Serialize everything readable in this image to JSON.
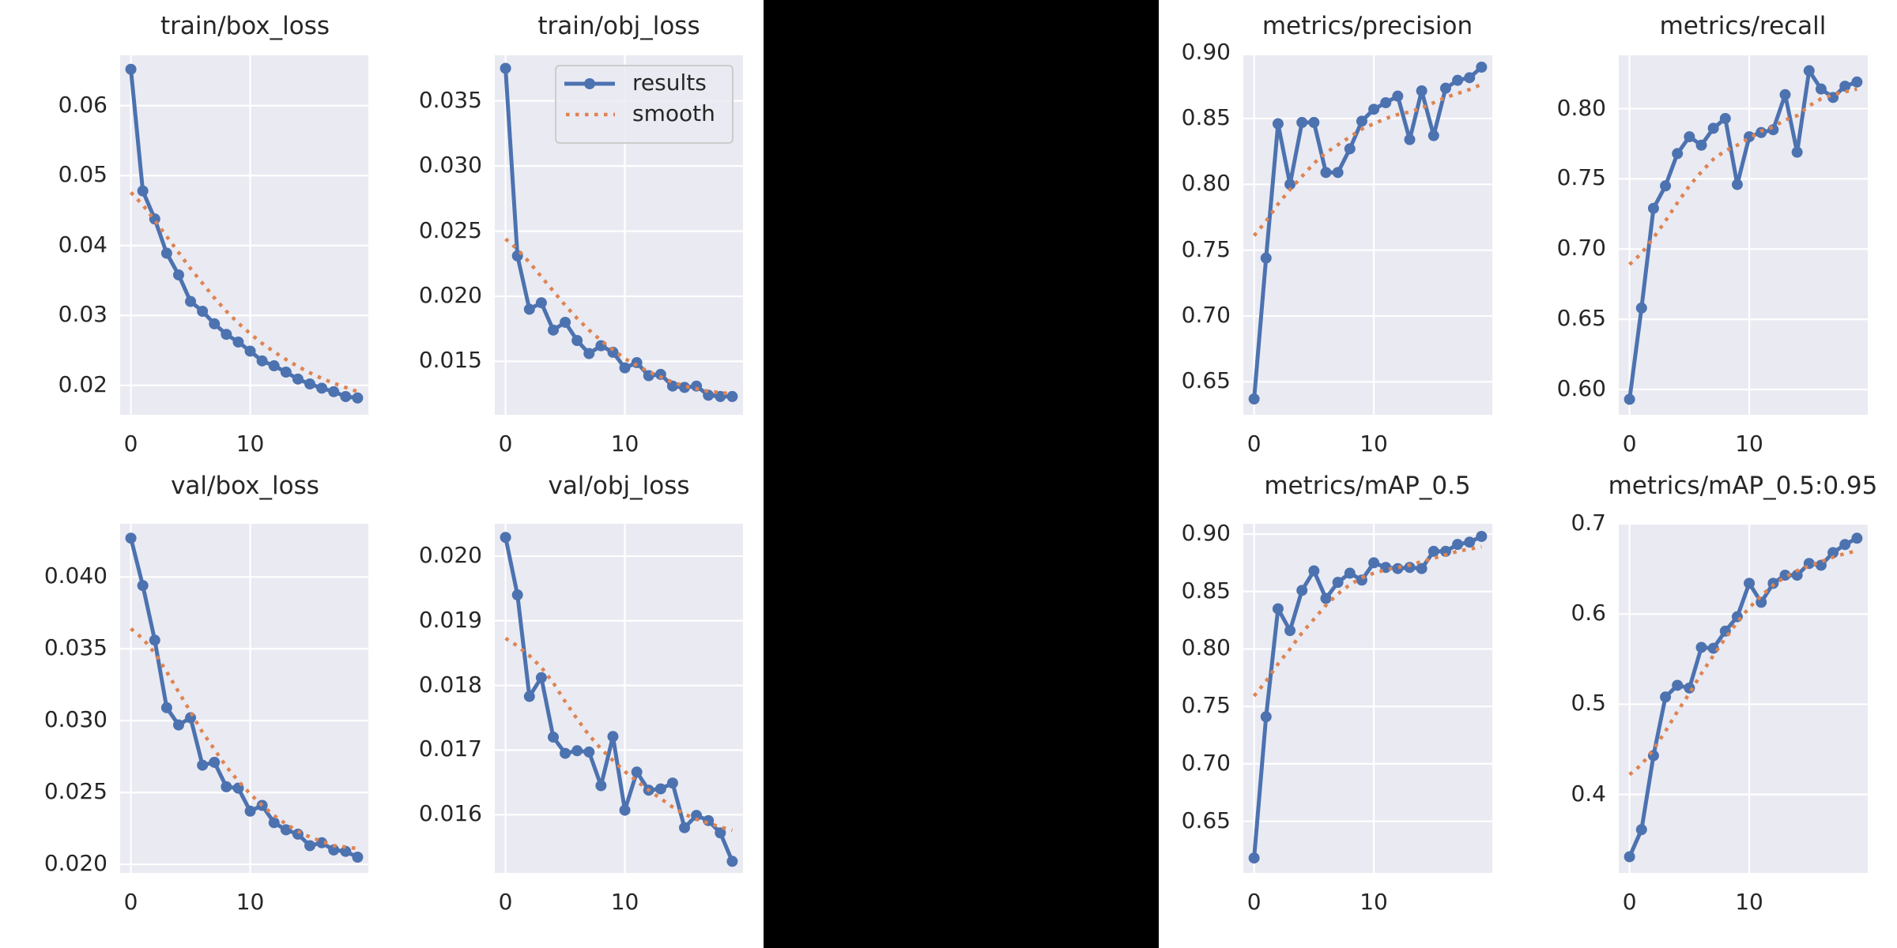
{
  "figure": {
    "legend": {
      "results_label": "results",
      "smooth_label": "smooth"
    },
    "colors": {
      "results": "#4c72b0",
      "smooth": "#dd8452",
      "axes_bg": "#eaeaf2",
      "grid": "#ffffff",
      "redaction": "#000000"
    },
    "redacted_region": "black rectangle covering middle columns"
  },
  "chart_data": [
    {
      "id": "train_box_loss",
      "type": "line",
      "title": "train/box_loss",
      "x": [
        0,
        1,
        2,
        3,
        4,
        5,
        6,
        7,
        8,
        9,
        10,
        11,
        12,
        13,
        14,
        15,
        16,
        17,
        18,
        19
      ],
      "series": [
        {
          "name": "results",
          "values": [
            0.0652,
            0.0478,
            0.0438,
            0.0389,
            0.0358,
            0.032,
            0.0306,
            0.0288,
            0.0273,
            0.0262,
            0.0249,
            0.0235,
            0.0228,
            0.0219,
            0.0209,
            0.0202,
            0.0196,
            0.0191,
            0.0184,
            0.0182
          ]
        },
        {
          "name": "smooth",
          "values": [
            0.0476,
            0.0458,
            0.0436,
            0.0413,
            0.039,
            0.0367,
            0.0346,
            0.0325,
            0.0306,
            0.0289,
            0.0274,
            0.026,
            0.0248,
            0.0237,
            0.0227,
            0.0218,
            0.021,
            0.0203,
            0.0197,
            0.0191
          ]
        }
      ],
      "yticks": [
        "0.02",
        "0.03",
        "0.04",
        "0.05",
        "0.06"
      ],
      "ytick_values": [
        0.02,
        0.03,
        0.04,
        0.05,
        0.06
      ],
      "xticks": [
        "0",
        "10"
      ],
      "ylim": [
        0.0158,
        0.0672
      ],
      "xlim": [
        -0.9,
        19.9
      ],
      "legend": false
    },
    {
      "id": "train_obj_loss",
      "type": "line",
      "title": "train/obj_loss",
      "x": [
        0,
        1,
        2,
        3,
        4,
        5,
        6,
        7,
        8,
        9,
        10,
        11,
        12,
        13,
        14,
        15,
        16,
        17,
        18,
        19
      ],
      "series": [
        {
          "name": "results",
          "values": [
            0.0375,
            0.0231,
            0.019,
            0.0195,
            0.0174,
            0.018,
            0.0166,
            0.0156,
            0.0162,
            0.0157,
            0.0145,
            0.0149,
            0.0139,
            0.014,
            0.0131,
            0.013,
            0.0131,
            0.0124,
            0.0123,
            0.0123
          ]
        },
        {
          "name": "smooth",
          "values": [
            0.0244,
            0.0236,
            0.0226,
            0.0215,
            0.0204,
            0.0193,
            0.0183,
            0.0174,
            0.0166,
            0.0159,
            0.0152,
            0.0147,
            0.0142,
            0.0138,
            0.0134,
            0.0131,
            0.0129,
            0.0127,
            0.0126,
            0.0125
          ]
        }
      ],
      "yticks": [
        "0.015",
        "0.020",
        "0.025",
        "0.030",
        "0.035"
      ],
      "ytick_values": [
        0.015,
        0.02,
        0.025,
        0.03,
        0.035
      ],
      "xticks": [
        "0",
        "10"
      ],
      "ylim": [
        0.0109,
        0.0385
      ],
      "xlim": [
        -0.9,
        19.9
      ],
      "legend": true
    },
    {
      "id": "metrics_precision",
      "type": "line",
      "title": "metrics/precision",
      "x": [
        0,
        1,
        2,
        3,
        4,
        5,
        6,
        7,
        8,
        9,
        10,
        11,
        12,
        13,
        14,
        15,
        16,
        17,
        18,
        19
      ],
      "series": [
        {
          "name": "results",
          "values": [
            0.637,
            0.744,
            0.846,
            0.8,
            0.847,
            0.847,
            0.809,
            0.809,
            0.827,
            0.848,
            0.857,
            0.862,
            0.867,
            0.834,
            0.871,
            0.837,
            0.873,
            0.879,
            0.881,
            0.889
          ]
        },
        {
          "name": "smooth",
          "values": [
            0.761,
            0.772,
            0.785,
            0.796,
            0.806,
            0.816,
            0.824,
            0.83,
            0.836,
            0.842,
            0.846,
            0.85,
            0.853,
            0.855,
            0.858,
            0.862,
            0.866,
            0.869,
            0.872,
            0.876
          ]
        }
      ],
      "yticks": [
        "0.65",
        "0.70",
        "0.75",
        "0.80",
        "0.85",
        "0.90"
      ],
      "ytick_values": [
        0.65,
        0.7,
        0.75,
        0.8,
        0.85,
        0.9
      ],
      "xticks": [
        "0",
        "10"
      ],
      "ylim": [
        0.625,
        0.898
      ],
      "xlim": [
        -0.9,
        19.9
      ],
      "legend": false
    },
    {
      "id": "metrics_recall",
      "type": "line",
      "title": "metrics/recall",
      "x": [
        0,
        1,
        2,
        3,
        4,
        5,
        6,
        7,
        8,
        9,
        10,
        11,
        12,
        13,
        14,
        15,
        16,
        17,
        18,
        19
      ],
      "series": [
        {
          "name": "results",
          "values": [
            0.593,
            0.658,
            0.729,
            0.745,
            0.768,
            0.78,
            0.774,
            0.786,
            0.793,
            0.746,
            0.78,
            0.783,
            0.785,
            0.81,
            0.769,
            0.827,
            0.814,
            0.808,
            0.816,
            0.819
          ]
        },
        {
          "name": "smooth",
          "values": [
            0.689,
            0.697,
            0.708,
            0.72,
            0.733,
            0.745,
            0.755,
            0.764,
            0.77,
            0.774,
            0.779,
            0.784,
            0.787,
            0.792,
            0.795,
            0.802,
            0.807,
            0.81,
            0.812,
            0.814
          ]
        }
      ],
      "yticks": [
        "0.60",
        "0.65",
        "0.70",
        "0.75",
        "0.80"
      ],
      "ytick_values": [
        0.6,
        0.65,
        0.7,
        0.75,
        0.8
      ],
      "xticks": [
        "0",
        "10"
      ],
      "ylim": [
        0.582,
        0.838
      ],
      "xlim": [
        -0.9,
        19.9
      ],
      "legend": false
    },
    {
      "id": "val_box_loss",
      "type": "line",
      "title": "val/box_loss",
      "x": [
        0,
        1,
        2,
        3,
        4,
        5,
        6,
        7,
        8,
        9,
        10,
        11,
        12,
        13,
        14,
        15,
        16,
        17,
        18,
        19
      ],
      "series": [
        {
          "name": "results",
          "values": [
            0.0427,
            0.0394,
            0.0356,
            0.0309,
            0.0297,
            0.0302,
            0.0269,
            0.0271,
            0.0254,
            0.0253,
            0.0237,
            0.0241,
            0.0229,
            0.0224,
            0.0221,
            0.0213,
            0.0215,
            0.021,
            0.0209,
            0.0205
          ]
        },
        {
          "name": "smooth",
          "values": [
            0.0364,
            0.0357,
            0.0347,
            0.0334,
            0.032,
            0.0306,
            0.0292,
            0.028,
            0.0268,
            0.0258,
            0.0249,
            0.0241,
            0.0234,
            0.0228,
            0.0223,
            0.0219,
            0.0216,
            0.0213,
            0.0212,
            0.0211
          ]
        }
      ],
      "yticks": [
        "0.020",
        "0.025",
        "0.030",
        "0.035",
        "0.040"
      ],
      "ytick_values": [
        0.02,
        0.025,
        0.03,
        0.035,
        0.04
      ],
      "xticks": [
        "0",
        "10"
      ],
      "ylim": [
        0.0194,
        0.0437
      ],
      "xlim": [
        -0.9,
        19.9
      ],
      "legend": false
    },
    {
      "id": "val_obj_loss",
      "type": "line",
      "title": "val/obj_loss",
      "x": [
        0,
        1,
        2,
        3,
        4,
        5,
        6,
        7,
        8,
        9,
        10,
        11,
        12,
        13,
        14,
        15,
        16,
        17,
        18,
        19
      ],
      "series": [
        {
          "name": "results",
          "values": [
            0.02029,
            0.0194,
            0.01783,
            0.01812,
            0.0172,
            0.01695,
            0.01699,
            0.01697,
            0.01645,
            0.01721,
            0.01607,
            0.01666,
            0.01638,
            0.0164,
            0.01649,
            0.0158,
            0.01599,
            0.01591,
            0.01572,
            0.01528
          ]
        },
        {
          "name": "smooth",
          "values": [
            0.01873,
            0.01861,
            0.01846,
            0.01828,
            0.01804,
            0.01775,
            0.01748,
            0.01723,
            0.01702,
            0.01684,
            0.01667,
            0.01652,
            0.01638,
            0.01625,
            0.01612,
            0.01601,
            0.01593,
            0.01587,
            0.01581,
            0.01576
          ]
        }
      ],
      "yticks": [
        "0.016",
        "0.017",
        "0.018",
        "0.019",
        "0.020"
      ],
      "ytick_values": [
        0.016,
        0.017,
        0.018,
        0.019,
        0.02
      ],
      "xticks": [
        "0",
        "10"
      ],
      "ylim": [
        0.0151,
        0.0205
      ],
      "xlim": [
        -0.9,
        19.9
      ],
      "legend": false
    },
    {
      "id": "metrics_mAP_0.5",
      "type": "line",
      "title": "metrics/mAP_0.5",
      "x": [
        0,
        1,
        2,
        3,
        4,
        5,
        6,
        7,
        8,
        9,
        10,
        11,
        12,
        13,
        14,
        15,
        16,
        17,
        18,
        19
      ],
      "series": [
        {
          "name": "results",
          "values": [
            0.618,
            0.741,
            0.835,
            0.816,
            0.851,
            0.868,
            0.844,
            0.858,
            0.866,
            0.86,
            0.875,
            0.871,
            0.87,
            0.871,
            0.87,
            0.885,
            0.885,
            0.891,
            0.893,
            0.898
          ]
        },
        {
          "name": "smooth",
          "values": [
            0.759,
            0.772,
            0.787,
            0.8,
            0.814,
            0.826,
            0.838,
            0.848,
            0.856,
            0.862,
            0.866,
            0.869,
            0.871,
            0.873,
            0.876,
            0.879,
            0.882,
            0.885,
            0.887,
            0.889
          ]
        }
      ],
      "yticks": [
        "0.65",
        "0.70",
        "0.75",
        "0.80",
        "0.85",
        "0.90"
      ],
      "ytick_values": [
        0.65,
        0.7,
        0.75,
        0.8,
        0.85,
        0.9
      ],
      "xticks": [
        "0",
        "10"
      ],
      "ylim": [
        0.605,
        0.909
      ],
      "xlim": [
        -0.9,
        19.9
      ],
      "legend": false
    },
    {
      "id": "metrics_mAP_0.5_0.95",
      "type": "line",
      "title": "metrics/mAP_0.5:0.95",
      "x": [
        0,
        1,
        2,
        3,
        4,
        5,
        6,
        7,
        8,
        9,
        10,
        11,
        12,
        13,
        14,
        15,
        16,
        17,
        18,
        19
      ],
      "series": [
        {
          "name": "results",
          "values": [
            0.331,
            0.361,
            0.443,
            0.508,
            0.521,
            0.518,
            0.563,
            0.562,
            0.581,
            0.597,
            0.634,
            0.613,
            0.634,
            0.643,
            0.643,
            0.656,
            0.654,
            0.668,
            0.677,
            0.684
          ]
        },
        {
          "name": "smooth",
          "values": [
            0.422,
            0.433,
            0.45,
            0.47,
            0.492,
            0.512,
            0.534,
            0.554,
            0.573,
            0.591,
            0.607,
            0.62,
            0.632,
            0.641,
            0.648,
            0.653,
            0.658,
            0.663,
            0.667,
            0.67
          ]
        }
      ],
      "yticks": [
        "0.4",
        "0.5",
        "0.6",
        "0.7"
      ],
      "ytick_values": [
        0.4,
        0.5,
        0.6,
        0.7
      ],
      "xticks": [
        "0",
        "10"
      ],
      "ylim": [
        0.313,
        0.7
      ],
      "xlim": [
        -0.9,
        19.9
      ],
      "legend": false
    }
  ]
}
